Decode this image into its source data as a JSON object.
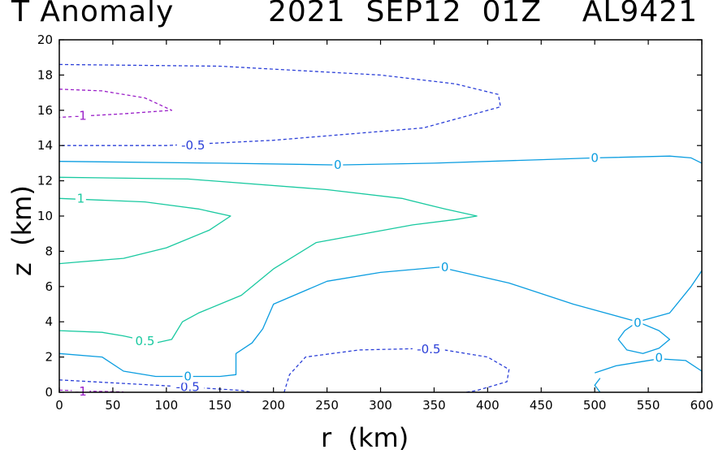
{
  "title": {
    "left": "T Anomaly",
    "right": "2021  SEP12  01Z    AL9421"
  },
  "colors": {
    "neg1": "#9a1fc8",
    "neg05": "#2b3fd8",
    "zero": "#0b9de0",
    "pos": "#19c9a0",
    "axis": "#000000"
  },
  "chart_data": {
    "type": "contour",
    "xlabel": "r  (km)",
    "ylabel": "z  (km)",
    "xlim": [
      0,
      600
    ],
    "ylim": [
      0,
      20
    ],
    "xticks": [
      0,
      50,
      100,
      150,
      200,
      250,
      300,
      350,
      400,
      450,
      500,
      550,
      600
    ],
    "yticks": [
      0,
      2,
      4,
      6,
      8,
      10,
      12,
      14,
      16,
      18,
      20
    ],
    "contours": [
      {
        "level": -1,
        "color": "neg1",
        "dashed": true,
        "lines": [
          [
            [
              0,
              17.2
            ],
            [
              40,
              17.1
            ],
            [
              80,
              16.7
            ],
            [
              105,
              16.0
            ],
            [
              60,
              15.8
            ],
            [
              0,
              15.6
            ]
          ]
        ]
      },
      {
        "level": -1,
        "color": "neg1",
        "dashed": true,
        "lines": [
          [
            [
              0,
              0.12
            ],
            [
              30,
              0.06
            ],
            [
              60,
              0.02
            ]
          ]
        ]
      },
      {
        "level": -0.5,
        "color": "neg05",
        "dashed": true,
        "lines": [
          [
            [
              0,
              18.6
            ],
            [
              150,
              18.5
            ],
            [
              300,
              18.0
            ],
            [
              370,
              17.5
            ],
            [
              410,
              16.9
            ],
            [
              412,
              16.2
            ],
            [
              340,
              15.0
            ],
            [
              200,
              14.3
            ],
            [
              100,
              14.0
            ],
            [
              0,
              14.0
            ]
          ]
        ]
      },
      {
        "level": -0.5,
        "color": "neg05",
        "dashed": true,
        "lines": [
          [
            [
              0,
              0.7
            ],
            [
              60,
              0.5
            ],
            [
              120,
              0.3
            ],
            [
              170,
              0.1
            ],
            [
              180,
              0
            ]
          ]
        ]
      },
      {
        "level": -0.5,
        "color": "neg05",
        "dashed": true,
        "lines": [
          [
            [
              210,
              0
            ],
            [
              215,
              1.0
            ],
            [
              230,
              2.0
            ],
            [
              280,
              2.4
            ],
            [
              350,
              2.5
            ],
            [
              400,
              2.0
            ],
            [
              420,
              1.3
            ],
            [
              418,
              0.6
            ],
            [
              390,
              0.1
            ],
            [
              380,
              0
            ]
          ]
        ]
      },
      {
        "level": 0,
        "color": "zero",
        "dashed": false,
        "lines": [
          [
            [
              0,
              13.1
            ],
            [
              150,
              13.0
            ],
            [
              260,
              12.9
            ],
            [
              350,
              13.0
            ],
            [
              450,
              13.2
            ],
            [
              500,
              13.3
            ],
            [
              570,
              13.4
            ],
            [
              590,
              13.3
            ],
            [
              600,
              13.0
            ]
          ]
        ]
      },
      {
        "level": 0,
        "color": "zero",
        "dashed": false,
        "lines": [
          [
            [
              0,
              2.2
            ],
            [
              40,
              2.0
            ],
            [
              60,
              1.2
            ],
            [
              90,
              0.9
            ],
            [
              150,
              0.9
            ],
            [
              165,
              1.0
            ],
            [
              165,
              2.2
            ],
            [
              180,
              2.8
            ],
            [
              190,
              3.6
            ],
            [
              200,
              5.0
            ],
            [
              250,
              6.3
            ],
            [
              300,
              6.8
            ],
            [
              355,
              7.1
            ],
            [
              420,
              6.2
            ],
            [
              480,
              5.0
            ],
            [
              540,
              4.0
            ],
            [
              570,
              4.5
            ],
            [
              590,
              6.0
            ],
            [
              600,
              6.9
            ]
          ]
        ]
      },
      {
        "level": 0,
        "color": "zero",
        "dashed": false,
        "lines": [
          [
            [
              540,
              4.0
            ],
            [
              528,
              3.5
            ],
            [
              522,
              3.0
            ],
            [
              530,
              2.4
            ],
            [
              545,
              2.2
            ],
            [
              560,
              2.5
            ],
            [
              570,
              3.0
            ],
            [
              560,
              3.5
            ],
            [
              540,
              4.0
            ]
          ]
        ]
      },
      {
        "level": 0,
        "color": "zero",
        "dashed": false,
        "lines": [
          [
            [
              500,
              1.1
            ],
            [
              520,
              1.5
            ],
            [
              560,
              1.9
            ],
            [
              585,
              1.8
            ],
            [
              600,
              1.2
            ],
            [
              600,
              0.5
            ]
          ]
        ]
      },
      {
        "level": 0,
        "color": "zero",
        "dashed": false,
        "lines": [
          [
            [
              505,
              0
            ],
            [
              500,
              0.4
            ],
            [
              505,
              0.8
            ]
          ]
        ]
      },
      {
        "level": 0.5,
        "color": "pos",
        "dashed": false,
        "lines": [
          [
            [
              0,
              12.2
            ],
            [
              120,
              12.1
            ],
            [
              250,
              11.5
            ],
            [
              320,
              11.0
            ],
            [
              360,
              10.4
            ],
            [
              390,
              10.0
            ],
            [
              370,
              9.8
            ],
            [
              330,
              9.5
            ],
            [
              240,
              8.5
            ],
            [
              200,
              7.0
            ],
            [
              170,
              5.5
            ],
            [
              130,
              4.5
            ],
            [
              115,
              4.0
            ],
            [
              105,
              3.0
            ],
            [
              90,
              2.8
            ],
            [
              60,
              3.2
            ],
            [
              40,
              3.4
            ],
            [
              0,
              3.5
            ]
          ]
        ]
      },
      {
        "level": 1,
        "color": "pos",
        "dashed": false,
        "lines": [
          [
            [
              0,
              11.0
            ],
            [
              80,
              10.8
            ],
            [
              130,
              10.4
            ],
            [
              160,
              10.0
            ],
            [
              140,
              9.2
            ],
            [
              100,
              8.2
            ],
            [
              60,
              7.6
            ],
            [
              20,
              7.4
            ],
            [
              0,
              7.3
            ]
          ]
        ]
      }
    ],
    "labels": [
      {
        "text": "-1",
        "x": 20,
        "y": 15.7,
        "color": "neg1"
      },
      {
        "text": "-1",
        "x": 20,
        "y": 0.05,
        "color": "neg1"
      },
      {
        "text": "-0.5",
        "x": 125,
        "y": 14.0,
        "color": "neg05"
      },
      {
        "text": "-0.5",
        "x": 120,
        "y": 0.3,
        "color": "neg05"
      },
      {
        "text": "-0.5",
        "x": 345,
        "y": 2.45,
        "color": "neg05"
      },
      {
        "text": "0",
        "x": 260,
        "y": 12.9,
        "color": "zero"
      },
      {
        "text": "0",
        "x": 500,
        "y": 13.3,
        "color": "zero"
      },
      {
        "text": "0",
        "x": 360,
        "y": 7.1,
        "color": "zero"
      },
      {
        "text": "0",
        "x": 540,
        "y": 3.95,
        "color": "zero"
      },
      {
        "text": "0",
        "x": 560,
        "y": 1.95,
        "color": "zero"
      },
      {
        "text": "0",
        "x": 120,
        "y": 0.9,
        "color": "zero"
      },
      {
        "text": "0.5",
        "x": 80,
        "y": 2.9,
        "color": "pos"
      },
      {
        "text": "1",
        "x": 20,
        "y": 11.0,
        "color": "pos"
      }
    ]
  }
}
